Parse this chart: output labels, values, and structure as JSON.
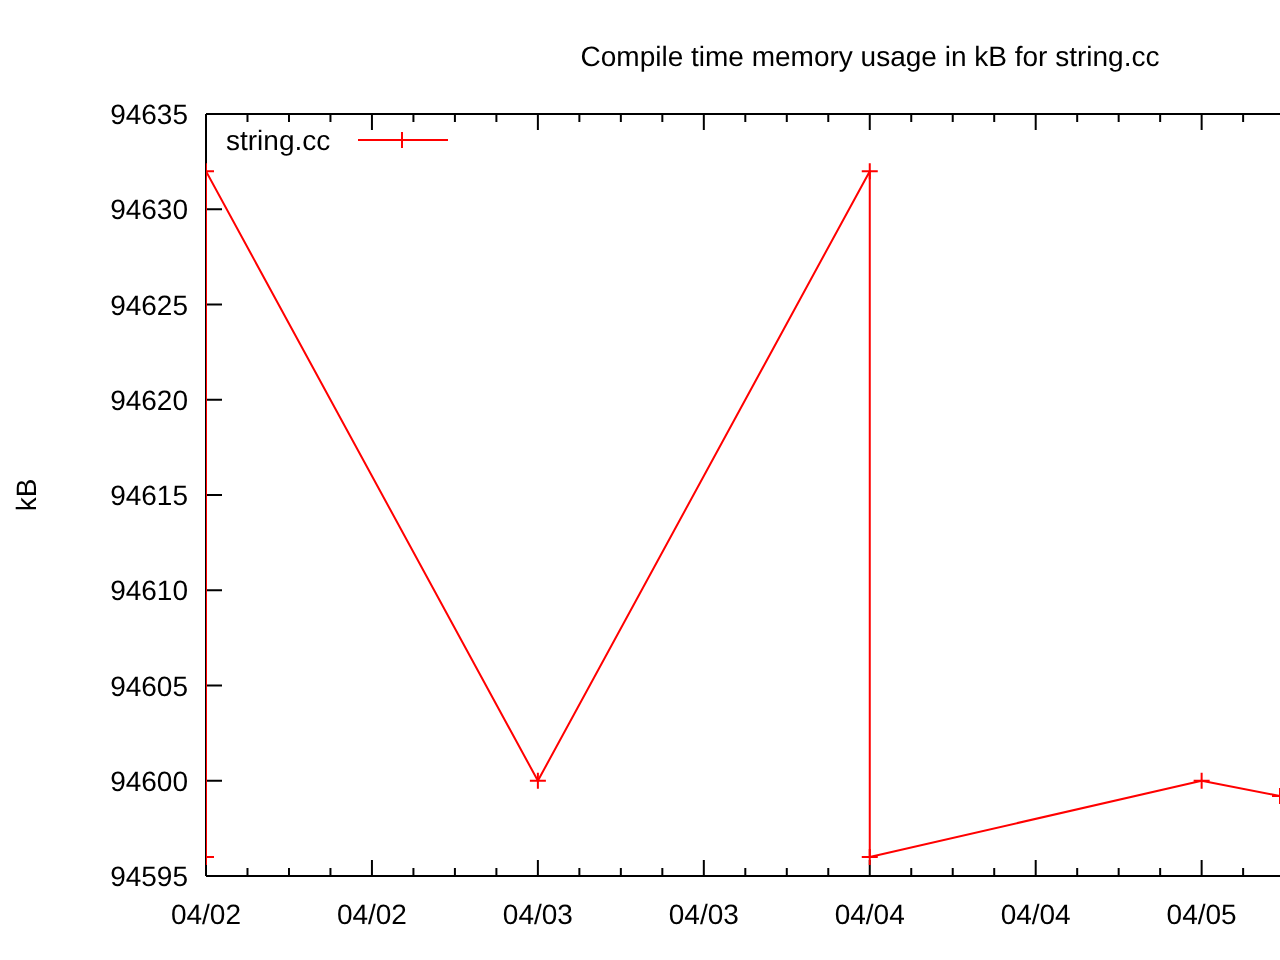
{
  "chart_data": {
    "type": "line",
    "title": "Compile time memory usage in kB for string.cc",
    "ylabel": "kB",
    "x": [
      "--04-02",
      "--04-02",
      "--04-03",
      "--04-04",
      "--04-04",
      "--04-05",
      "--04-05T05:40"
    ],
    "series": [
      {
        "name": "string.cc",
        "color": "#ff0000",
        "values": [
          94596,
          94632,
          94600,
          94632,
          94596,
          94600,
          94599.2
        ]
      }
    ],
    "xlim": [
      "--04-02",
      "--04-05T05:40"
    ],
    "xticks": [
      {
        "value": "--04-02T00:00",
        "label": "04/02"
      },
      {
        "value": "--04-02T03:00",
        "label": null
      },
      {
        "value": "--04-02T06:00",
        "label": null
      },
      {
        "value": "--04-02T09:00",
        "label": null
      },
      {
        "value": "--04-02T12:00",
        "label": "04/02"
      },
      {
        "value": "--04-02T15:00",
        "label": null
      },
      {
        "value": "--04-02T18:00",
        "label": null
      },
      {
        "value": "--04-02T21:00",
        "label": null
      },
      {
        "value": "--04-03T00:00",
        "label": "04/03"
      },
      {
        "value": "--04-03T03:00",
        "label": null
      },
      {
        "value": "--04-03T06:00",
        "label": null
      },
      {
        "value": "--04-03T09:00",
        "label": null
      },
      {
        "value": "--04-03T12:00",
        "label": "04/03"
      },
      {
        "value": "--04-03T15:00",
        "label": null
      },
      {
        "value": "--04-03T18:00",
        "label": null
      },
      {
        "value": "--04-03T21:00",
        "label": null
      },
      {
        "value": "--04-04T00:00",
        "label": "04/04"
      },
      {
        "value": "--04-04T03:00",
        "label": null
      },
      {
        "value": "--04-04T06:00",
        "label": null
      },
      {
        "value": "--04-04T09:00",
        "label": null
      },
      {
        "value": "--04-04T12:00",
        "label": "04/04"
      },
      {
        "value": "--04-04T15:00",
        "label": null
      },
      {
        "value": "--04-04T18:00",
        "label": null
      },
      {
        "value": "--04-04T21:00",
        "label": null
      },
      {
        "value": "--04-05T00:00",
        "label": "04/05"
      },
      {
        "value": "--04-05T03:00",
        "label": null
      }
    ],
    "ylim": [
      94595,
      94635
    ],
    "yticks": [
      94595,
      94600,
      94605,
      94610,
      94615,
      94620,
      94625,
      94630,
      94635
    ],
    "grid": false,
    "legend": "top left",
    "marker": "cross",
    "line_style": "solid"
  }
}
